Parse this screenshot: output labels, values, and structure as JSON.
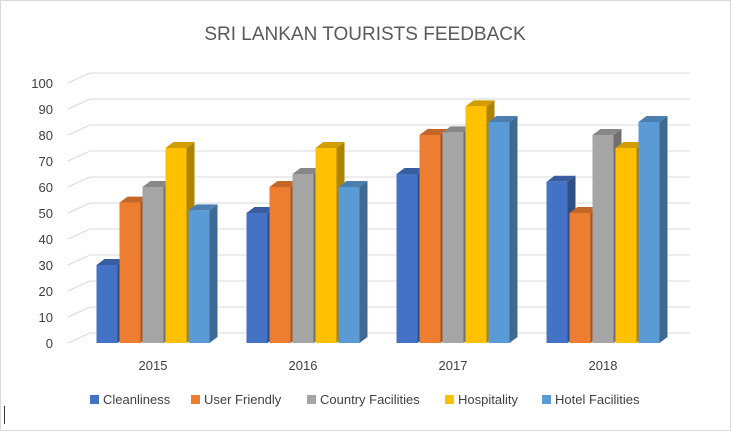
{
  "chart_data": {
    "type": "bar",
    "title": "SRI LANKAN TOURISTS FEEDBACK",
    "categories": [
      "2015",
      "2016",
      "2017",
      "2018"
    ],
    "series": [
      {
        "name": "Cleanliness",
        "color": "#4472c4",
        "values": [
          30,
          50,
          65,
          62
        ]
      },
      {
        "name": "User Friendly",
        "color": "#ed7d31",
        "values": [
          54,
          60,
          80,
          50
        ]
      },
      {
        "name": "Country Facilities",
        "color": "#a5a5a5",
        "values": [
          60,
          65,
          81,
          80
        ]
      },
      {
        "name": "Hospitality",
        "color": "#ffc000",
        "values": [
          75,
          75,
          91,
          75
        ]
      },
      {
        "name": "Hotel Facilities",
        "color": "#5b9bd5",
        "values": [
          51,
          60,
          85,
          85
        ]
      }
    ],
    "y_ticks": [
      "0",
      "10",
      "20",
      "30",
      "40",
      "50",
      "60",
      "70",
      "80",
      "90",
      "100"
    ],
    "ylim": [
      0,
      100
    ],
    "grid": true,
    "legend_position": "bottom"
  }
}
